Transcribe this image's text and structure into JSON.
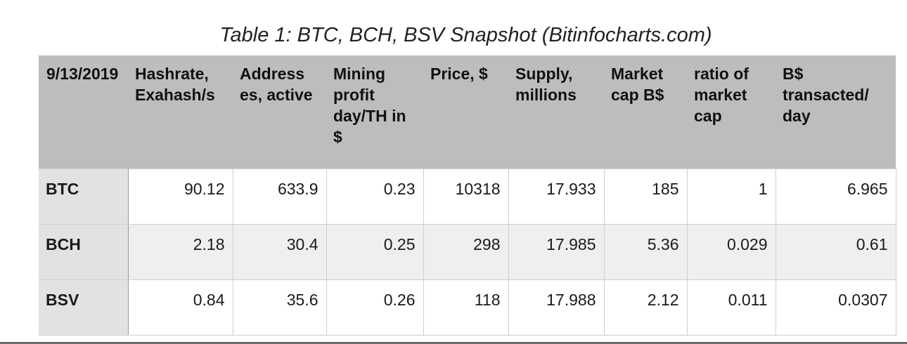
{
  "caption": "Table 1: BTC, BCH, BSV Snapshot (Bitinfocharts.com)",
  "table": {
    "headers": [
      "9/13/2019",
      "Hashrate, Exahash/s",
      "Address es, active",
      "Mining profit day/TH in $",
      "Price, $",
      "Supply, millions",
      "Market cap B$",
      "ratio of market cap",
      "B$ transacted/ day"
    ],
    "rows": [
      {
        "label": "BTC",
        "cells": [
          "90.12",
          "633.9",
          "0.23",
          "10318",
          "17.933",
          "185",
          "1",
          "6.965"
        ]
      },
      {
        "label": "BCH",
        "cells": [
          "2.18",
          "30.4",
          "0.25",
          "298",
          "17.985",
          "5.36",
          "0.029",
          "0.61"
        ]
      },
      {
        "label": "BSV",
        "cells": [
          "0.84",
          "35.6",
          "0.26",
          "118",
          "17.988",
          "2.12",
          "0.011",
          "0.0307"
        ]
      }
    ]
  }
}
